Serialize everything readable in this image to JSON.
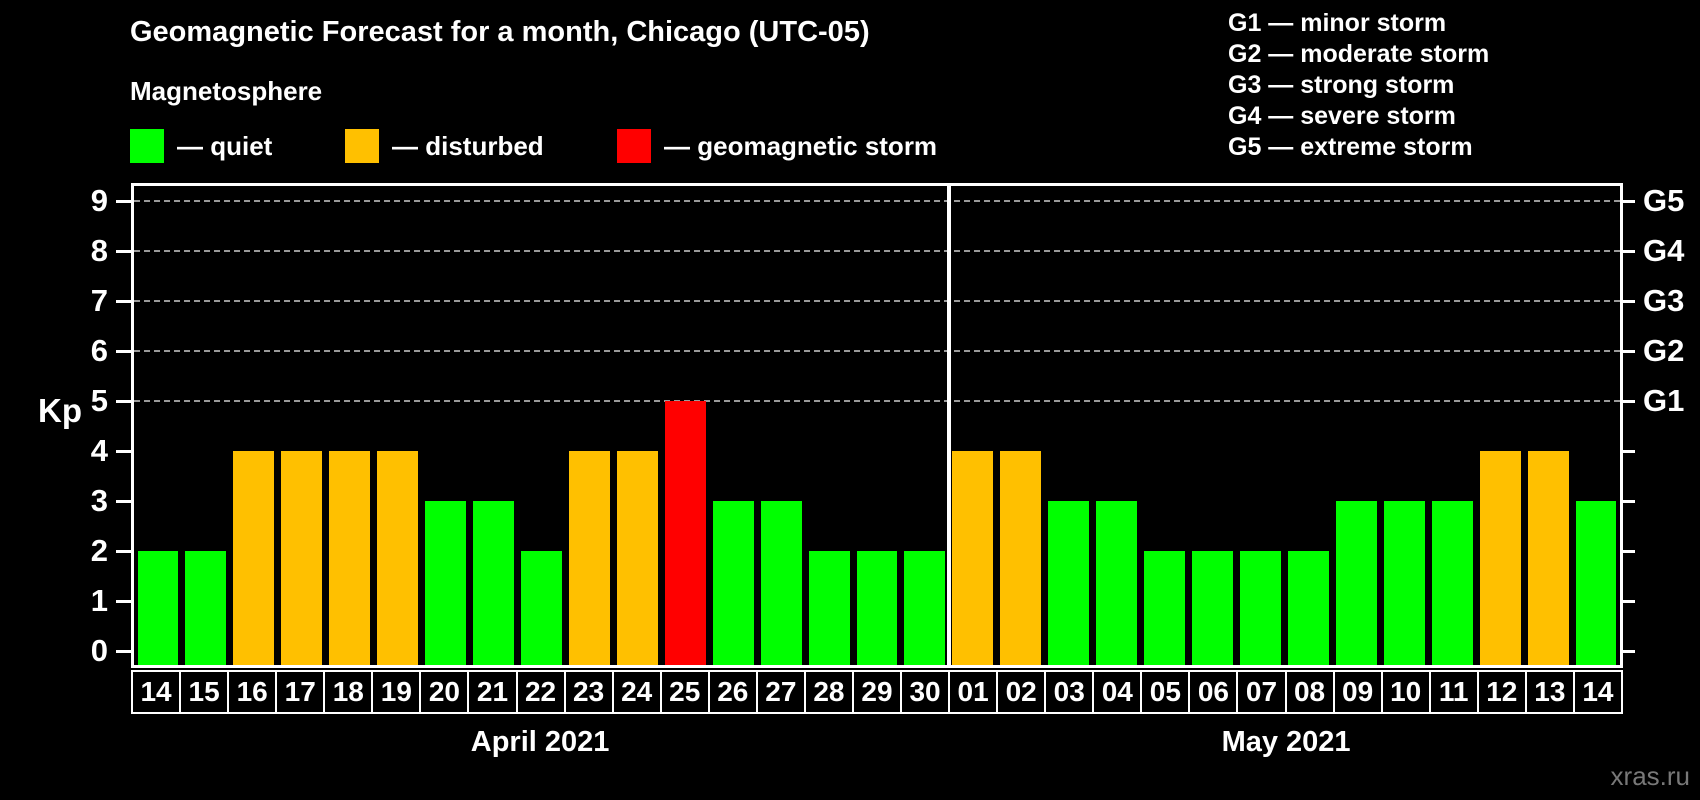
{
  "header": {
    "title": "Geomagnetic Forecast for a month, Chicago (UTC-05)",
    "subtitle": "Magnetosphere",
    "legend": [
      {
        "status": "quiet",
        "label": "— quiet"
      },
      {
        "status": "disturbed",
        "label": "— disturbed"
      },
      {
        "status": "storm",
        "label": "— geomagnetic storm"
      }
    ],
    "storm_scale": [
      {
        "label": "G1 — minor storm"
      },
      {
        "label": "G2 — moderate storm"
      },
      {
        "label": "G3 — strong storm"
      },
      {
        "label": "G4 — severe storm"
      },
      {
        "label": "G5 — extreme storm"
      }
    ]
  },
  "colors": {
    "quiet": "#00ff00",
    "disturbed": "#ffc000",
    "storm": "#ff0000",
    "grid": "#9a9a9a",
    "axis": "#ffffff",
    "background": "#000000",
    "watermark": "#787878"
  },
  "chart_data": {
    "type": "bar",
    "title": "Geomagnetic Forecast for a month, Chicago (UTC-05)",
    "ylabel": "Kp",
    "ylim": [
      0,
      9
    ],
    "yticks": [
      0,
      1,
      2,
      3,
      4,
      5,
      6,
      7,
      8,
      9
    ],
    "gridlines_at": [
      5,
      6,
      7,
      8,
      9
    ],
    "grid_style": "dashed",
    "legend_position": "top",
    "right_axis": [
      {
        "kp": 5,
        "label": "G1"
      },
      {
        "kp": 6,
        "label": "G2"
      },
      {
        "kp": 7,
        "label": "G3"
      },
      {
        "kp": 8,
        "label": "G4"
      },
      {
        "kp": 9,
        "label": "G5"
      }
    ],
    "groups": [
      {
        "month": "April 2021",
        "bars": [
          {
            "day": "14",
            "kp": 2,
            "status": "quiet"
          },
          {
            "day": "15",
            "kp": 2,
            "status": "quiet"
          },
          {
            "day": "16",
            "kp": 4,
            "status": "disturbed"
          },
          {
            "day": "17",
            "kp": 4,
            "status": "disturbed"
          },
          {
            "day": "18",
            "kp": 4,
            "status": "disturbed"
          },
          {
            "day": "19",
            "kp": 4,
            "status": "disturbed"
          },
          {
            "day": "20",
            "kp": 3,
            "status": "quiet"
          },
          {
            "day": "21",
            "kp": 3,
            "status": "quiet"
          },
          {
            "day": "22",
            "kp": 2,
            "status": "quiet"
          },
          {
            "day": "23",
            "kp": 4,
            "status": "disturbed"
          },
          {
            "day": "24",
            "kp": 4,
            "status": "disturbed"
          },
          {
            "day": "25",
            "kp": 5,
            "status": "storm"
          },
          {
            "day": "26",
            "kp": 3,
            "status": "quiet"
          },
          {
            "day": "27",
            "kp": 3,
            "status": "quiet"
          },
          {
            "day": "28",
            "kp": 2,
            "status": "quiet"
          },
          {
            "day": "29",
            "kp": 2,
            "status": "quiet"
          },
          {
            "day": "30",
            "kp": 2,
            "status": "quiet"
          }
        ]
      },
      {
        "month": "May 2021",
        "bars": [
          {
            "day": "01",
            "kp": 4,
            "status": "disturbed"
          },
          {
            "day": "02",
            "kp": 4,
            "status": "disturbed"
          },
          {
            "day": "03",
            "kp": 3,
            "status": "quiet"
          },
          {
            "day": "04",
            "kp": 3,
            "status": "quiet"
          },
          {
            "day": "05",
            "kp": 2,
            "status": "quiet"
          },
          {
            "day": "06",
            "kp": 2,
            "status": "quiet"
          },
          {
            "day": "07",
            "kp": 2,
            "status": "quiet"
          },
          {
            "day": "08",
            "kp": 2,
            "status": "quiet"
          },
          {
            "day": "09",
            "kp": 3,
            "status": "quiet"
          },
          {
            "day": "10",
            "kp": 3,
            "status": "quiet"
          },
          {
            "day": "11",
            "kp": 3,
            "status": "quiet"
          },
          {
            "day": "12",
            "kp": 4,
            "status": "disturbed"
          },
          {
            "day": "13",
            "kp": 4,
            "status": "disturbed"
          },
          {
            "day": "14",
            "kp": 3,
            "status": "quiet"
          }
        ]
      }
    ]
  },
  "watermark": "xras.ru"
}
